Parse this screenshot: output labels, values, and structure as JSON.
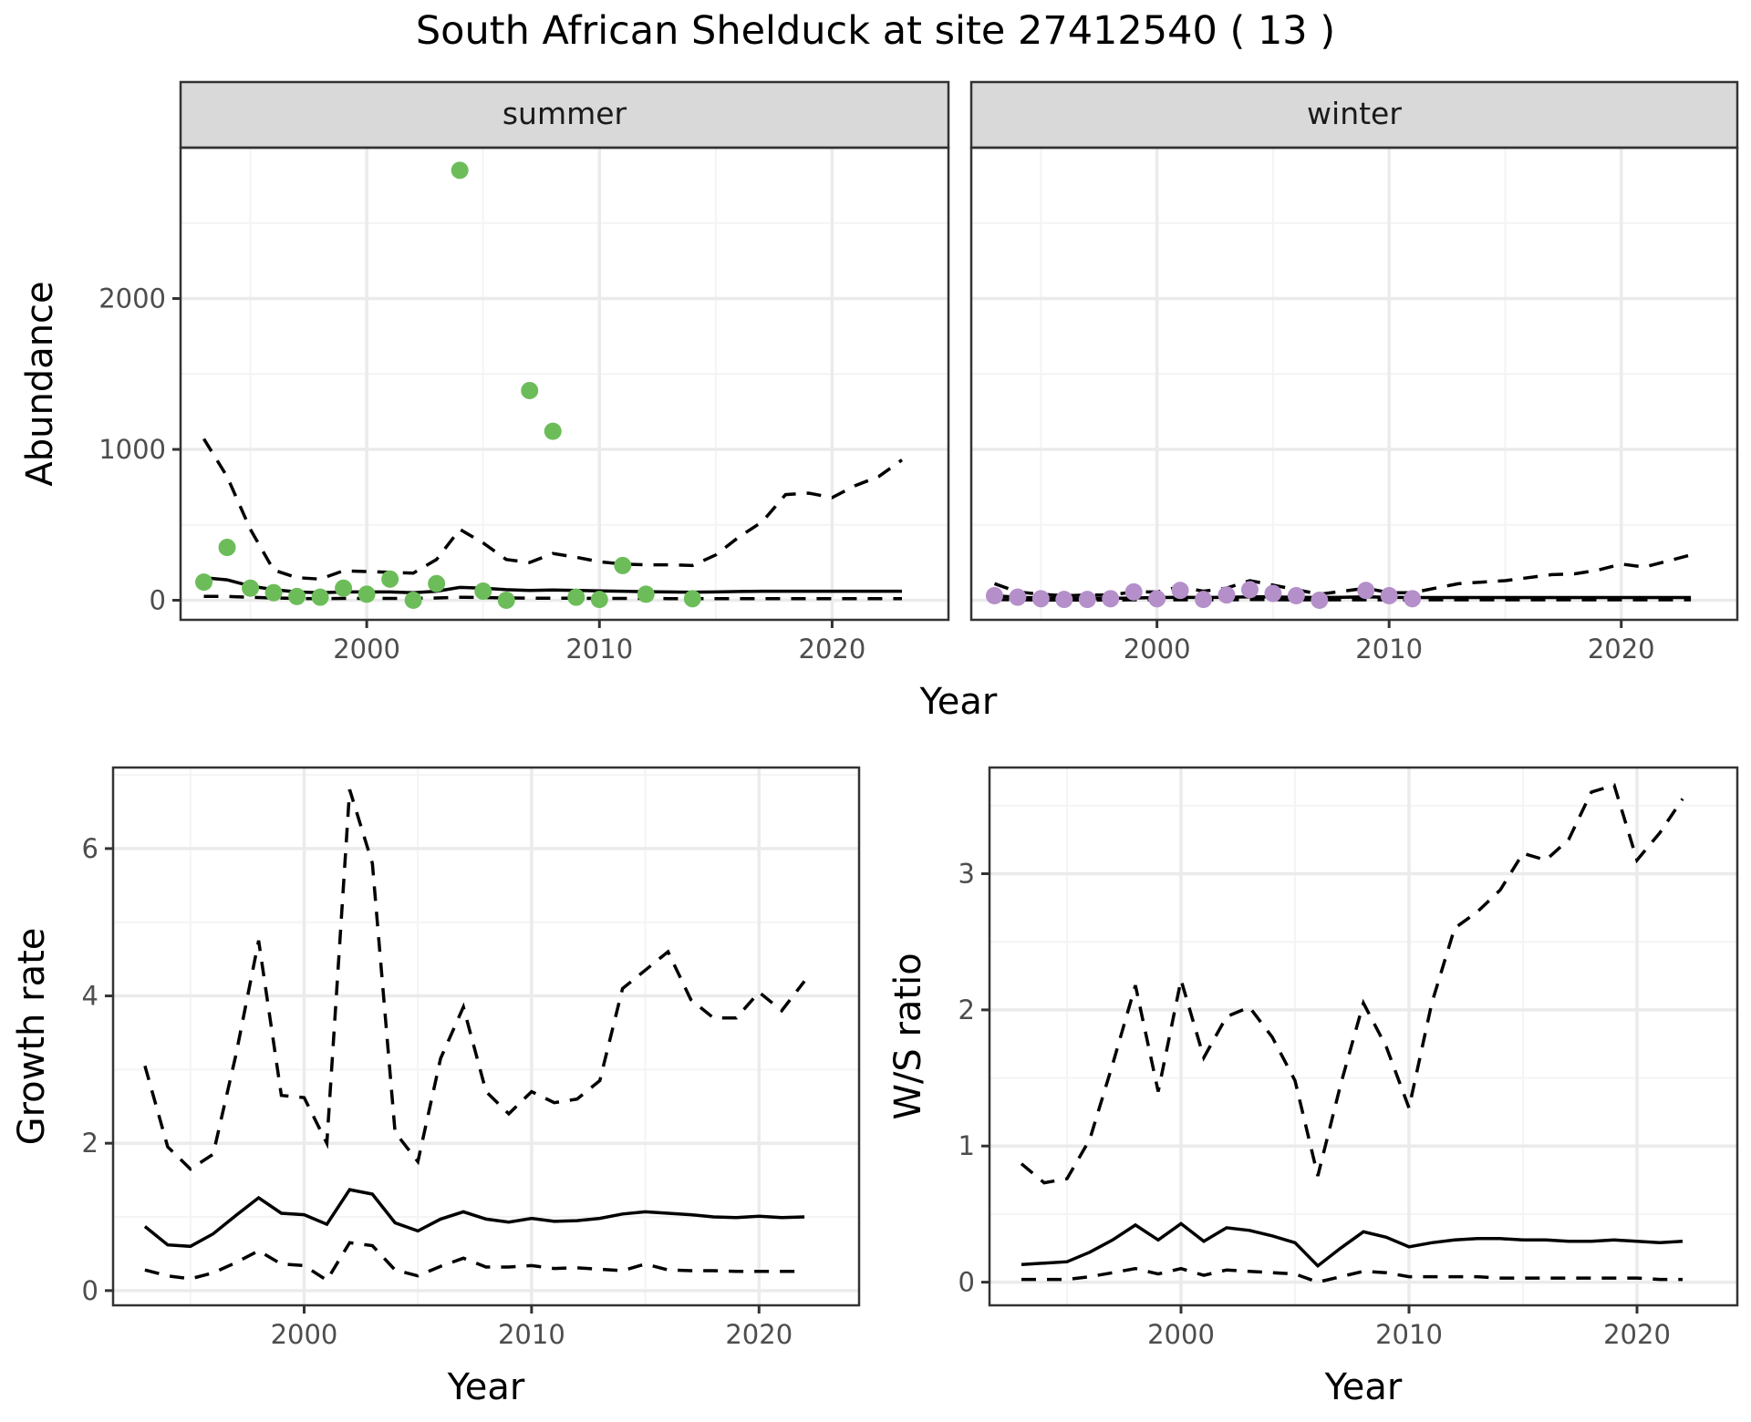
{
  "title": "South African Shelduck at site 27412540 ( 13 )",
  "colors": {
    "summer_points": "#6cbd5a",
    "winter_points": "#b48fc9",
    "lines": "#000000",
    "strip_bg": "#d9d9d9",
    "panel_border": "#333333",
    "grid_major": "#ebebeb",
    "grid_minor": "#f4f4f4"
  },
  "chart_data": [
    {
      "type": "scatter",
      "id": "abundance",
      "ylabel": "Abundance",
      "xlabel": "Year",
      "xlim": [
        1992,
        2025
      ],
      "ylim": [
        -130,
        3000
      ],
      "xticks": [
        2000,
        2010,
        2020
      ],
      "yticks": [
        0,
        1000,
        2000
      ],
      "grid": true,
      "facets": [
        {
          "label": "summer",
          "points": {
            "x": [
              1993,
              1994,
              1995,
              1996,
              1997,
              1998,
              1999,
              2000,
              2001,
              2002,
              2003,
              2004,
              2005,
              2006,
              2007,
              2008,
              2009,
              2010,
              2011,
              2012,
              2014
            ],
            "y": [
              120,
              350,
              80,
              50,
              25,
              20,
              80,
              40,
              140,
              0,
              110,
              2850,
              60,
              0,
              1390,
              1120,
              20,
              5,
              230,
              40,
              10
            ]
          },
          "fit": {
            "x": [
              1993,
              1994,
              1995,
              1996,
              1997,
              1998,
              1999,
              2000,
              2001,
              2002,
              2003,
              2004,
              2005,
              2006,
              2007,
              2008,
              2009,
              2010,
              2011,
              2012,
              2013,
              2014,
              2015,
              2016,
              2017,
              2018,
              2019,
              2020,
              2021,
              2022,
              2023
            ],
            "mean": [
              150,
              135,
              95,
              70,
              55,
              50,
              55,
              55,
              55,
              50,
              60,
              85,
              80,
              70,
              65,
              68,
              65,
              62,
              60,
              57,
              55,
              53,
              55,
              58,
              60,
              60,
              60,
              60,
              60,
              60,
              60
            ],
            "upper": [
              1070,
              820,
              470,
              200,
              150,
              140,
              195,
              190,
              185,
              180,
              270,
              470,
              380,
              270,
              250,
              310,
              285,
              255,
              240,
              235,
              235,
              230,
              300,
              420,
              520,
              700,
              710,
              680,
              760,
              820,
              930
            ],
            "lower": [
              25,
              25,
              20,
              15,
              12,
              10,
              12,
              12,
              12,
              12,
              15,
              20,
              18,
              15,
              14,
              14,
              13,
              12,
              12,
              12,
              11,
              11,
              11,
              11,
              11,
              11,
              11,
              11,
              11,
              11,
              11
            ]
          }
        },
        {
          "label": "winter",
          "points": {
            "x": [
              1993,
              1994,
              1995,
              1996,
              1997,
              1998,
              1999,
              2000,
              2001,
              2002,
              2003,
              2004,
              2005,
              2006,
              2007,
              2009,
              2010,
              2011
            ],
            "y": [
              30,
              20,
              10,
              5,
              5,
              10,
              55,
              10,
              65,
              5,
              35,
              70,
              45,
              30,
              0,
              65,
              30,
              10
            ]
          },
          "fit": {
            "x": [
              1993,
              1994,
              1995,
              1996,
              1997,
              1998,
              1999,
              2000,
              2001,
              2002,
              2003,
              2004,
              2005,
              2006,
              2007,
              2008,
              2009,
              2010,
              2011,
              2012,
              2013,
              2014,
              2015,
              2016,
              2017,
              2018,
              2019,
              2020,
              2021,
              2022,
              2023
            ],
            "mean": [
              30,
              20,
              15,
              12,
              12,
              12,
              15,
              18,
              20,
              18,
              20,
              22,
              22,
              20,
              18,
              20,
              22,
              20,
              18,
              18,
              18,
              18,
              18,
              18,
              18,
              18,
              18,
              18,
              18,
              18,
              18
            ],
            "upper": [
              110,
              55,
              40,
              30,
              35,
              35,
              55,
              55,
              90,
              60,
              80,
              130,
              100,
              70,
              40,
              60,
              80,
              50,
              50,
              80,
              110,
              120,
              130,
              150,
              170,
              175,
              200,
              240,
              220,
              260,
              300
            ],
            "lower": [
              5,
              3,
              2,
              2,
              2,
              2,
              3,
              3,
              3,
              3,
              3,
              4,
              4,
              3,
              3,
              3,
              3,
              3,
              3,
              3,
              3,
              3,
              3,
              3,
              3,
              3,
              3,
              3,
              3,
              3,
              3
            ]
          }
        }
      ]
    },
    {
      "type": "line",
      "id": "growth",
      "ylabel": "Growth rate",
      "xlabel": "Year",
      "xlim": [
        1991.6,
        2024.4
      ],
      "ylim": [
        -0.2,
        7.1
      ],
      "xticks": [
        2000,
        2010,
        2020
      ],
      "yticks": [
        0,
        2,
        4,
        6
      ],
      "grid": true,
      "x": [
        1993,
        1994,
        1995,
        1996,
        1997,
        1998,
        1999,
        2000,
        2001,
        2002,
        2003,
        2004,
        2005,
        2006,
        2007,
        2008,
        2009,
        2010,
        2011,
        2012,
        2013,
        2014,
        2015,
        2016,
        2017,
        2018,
        2019,
        2020,
        2021,
        2022
      ],
      "series": [
        {
          "name": "mean",
          "style": "solid",
          "values": [
            0.87,
            0.62,
            0.6,
            0.77,
            1.02,
            1.26,
            1.05,
            1.03,
            0.9,
            1.37,
            1.31,
            0.92,
            0.81,
            0.97,
            1.07,
            0.97,
            0.93,
            0.98,
            0.94,
            0.95,
            0.98,
            1.04,
            1.07,
            1.05,
            1.03,
            1.0,
            0.99,
            1.01,
            0.99,
            1.0
          ]
        },
        {
          "name": "upper",
          "style": "dashed",
          "values": [
            3.05,
            1.95,
            1.65,
            1.85,
            3.2,
            4.75,
            2.65,
            2.62,
            2.0,
            6.8,
            5.8,
            2.15,
            1.75,
            3.15,
            3.85,
            2.7,
            2.4,
            2.7,
            2.55,
            2.6,
            2.85,
            4.1,
            4.35,
            4.6,
            3.95,
            3.7,
            3.7,
            4.05,
            3.8,
            4.2
          ]
        },
        {
          "name": "lower",
          "style": "dashed",
          "values": [
            0.28,
            0.2,
            0.16,
            0.24,
            0.38,
            0.54,
            0.36,
            0.34,
            0.14,
            0.65,
            0.61,
            0.28,
            0.2,
            0.33,
            0.44,
            0.32,
            0.32,
            0.34,
            0.3,
            0.31,
            0.29,
            0.27,
            0.36,
            0.28,
            0.27,
            0.27,
            0.26,
            0.26,
            0.26,
            0.26
          ]
        }
      ]
    },
    {
      "type": "line",
      "id": "ws_ratio",
      "ylabel": "W/S ratio",
      "xlabel": "Year",
      "xlim": [
        1991.6,
        2024.4
      ],
      "ylim": [
        -0.17,
        3.78
      ],
      "xticks": [
        2000,
        2010,
        2020
      ],
      "yticks": [
        0,
        1,
        2,
        3
      ],
      "grid": true,
      "x": [
        1993,
        1994,
        1995,
        1996,
        1997,
        1998,
        1999,
        2000,
        2001,
        2002,
        2003,
        2004,
        2005,
        2006,
        2007,
        2008,
        2009,
        2010,
        2011,
        2012,
        2013,
        2014,
        2015,
        2016,
        2017,
        2018,
        2019,
        2020,
        2021,
        2022
      ],
      "series": [
        {
          "name": "mean",
          "style": "solid",
          "values": [
            0.13,
            0.14,
            0.15,
            0.22,
            0.31,
            0.42,
            0.31,
            0.43,
            0.3,
            0.4,
            0.38,
            0.34,
            0.29,
            0.12,
            0.25,
            0.37,
            0.33,
            0.26,
            0.29,
            0.31,
            0.32,
            0.32,
            0.31,
            0.31,
            0.3,
            0.3,
            0.31,
            0.3,
            0.29,
            0.3
          ]
        },
        {
          "name": "upper",
          "style": "dashed",
          "values": [
            0.87,
            0.73,
            0.76,
            1.05,
            1.6,
            2.18,
            1.4,
            2.22,
            1.65,
            1.95,
            2.02,
            1.8,
            1.48,
            0.78,
            1.45,
            2.05,
            1.73,
            1.28,
            2.05,
            2.6,
            2.72,
            2.88,
            3.15,
            3.1,
            3.25,
            3.6,
            3.65,
            3.1,
            3.3,
            3.55
          ]
        },
        {
          "name": "lower",
          "style": "dashed",
          "values": [
            0.02,
            0.02,
            0.02,
            0.04,
            0.07,
            0.1,
            0.06,
            0.1,
            0.05,
            0.09,
            0.08,
            0.07,
            0.06,
            0.0,
            0.04,
            0.08,
            0.07,
            0.04,
            0.04,
            0.04,
            0.04,
            0.03,
            0.03,
            0.03,
            0.03,
            0.03,
            0.03,
            0.03,
            0.02,
            0.02
          ]
        }
      ]
    }
  ]
}
